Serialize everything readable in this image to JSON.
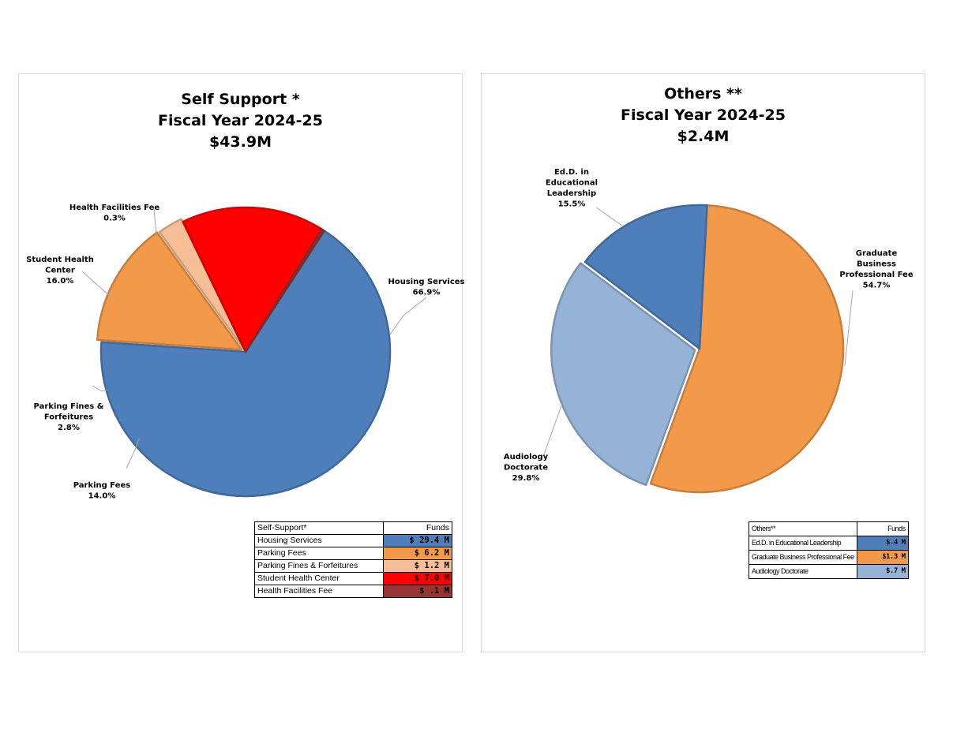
{
  "chart_data": [
    {
      "type": "pie",
      "title_lines": [
        "Self Support *",
        "Fiscal Year 2024-25",
        "$43.9M"
      ],
      "slices": [
        {
          "label": "Housing Services",
          "percent": 66.9,
          "color": "#4E7FBA",
          "label_text": [
            "Housing Services",
            "66.9%"
          ]
        },
        {
          "label": "Parking Fees",
          "percent": 14.0,
          "color": "#F39A4A",
          "label_text": [
            "Parking Fees",
            "14.0%"
          ]
        },
        {
          "label": "Parking Fines & Forfeitures",
          "percent": 2.8,
          "color": "#F6BE96",
          "label_text": [
            "Parking Fines &",
            "Forfeitures",
            "2.8%"
          ]
        },
        {
          "label": "Student Health Center",
          "percent": 16.0,
          "color": "#FF0000",
          "label_text": [
            "Student Health",
            "Center",
            "16.0%"
          ]
        },
        {
          "label": "Health Facilities Fee",
          "percent": 0.3,
          "color": "#963634",
          "label_text": [
            "Health Facilities Fee",
            "0.3%"
          ]
        }
      ],
      "table": {
        "header": [
          "Self-Support*",
          "Funds"
        ],
        "rows": [
          {
            "label": "Housing Services",
            "value": "$ 29.4 M",
            "color": "#4E7FBA",
            "text_color": "#000000"
          },
          {
            "label": "Parking Fees",
            "value": "$ 6.2 M",
            "color": "#F39A4A",
            "text_color": "#000000"
          },
          {
            "label": "Parking Fines & Forfeitures",
            "value": "$ 1.2 M",
            "color": "#F6BE96",
            "text_color": "#000000"
          },
          {
            "label": "Student Health Center",
            "value": "$ 7.0 M",
            "color": "#FF0000",
            "text_color": "#000000"
          },
          {
            "label": "Health Facilities Fee",
            "value": "$ .1 M",
            "color": "#963634",
            "text_color": "#000000"
          }
        ]
      }
    },
    {
      "type": "pie",
      "title_lines": [
        "Others **",
        "Fiscal Year 2024-25",
        "$2.4M"
      ],
      "slices": [
        {
          "label": "Graduate Business Professional Fee",
          "percent": 54.7,
          "color": "#F39A4A",
          "label_text": [
            "Graduate",
            "Business",
            "Professional Fee",
            "54.7%"
          ]
        },
        {
          "label": "Audiology Doctorate",
          "percent": 29.8,
          "color": "#95B3D7",
          "label_text": [
            "Audiology",
            "Doctorate",
            "29.8%"
          ]
        },
        {
          "label": "Ed.D. in Educational Leadership",
          "percent": 15.5,
          "color": "#4E7FBA",
          "label_text": [
            "Ed.D. in",
            "Educational",
            "Leadership",
            "15.5%"
          ]
        }
      ],
      "table": {
        "header": [
          "Others**",
          "Funds"
        ],
        "rows": [
          {
            "label": "Ed.D. in Educational Leadership",
            "value": "$.4 M",
            "color": "#4E7FBA",
            "text_color": "#000000"
          },
          {
            "label": "Graduate Business Professional Fee",
            "value": "$1.3 M",
            "color": "#F39A4A",
            "text_color": "#000000"
          },
          {
            "label": "Audiology Doctorate",
            "value": "$.7 M",
            "color": "#95B3D7",
            "text_color": "#000000"
          }
        ]
      }
    }
  ]
}
